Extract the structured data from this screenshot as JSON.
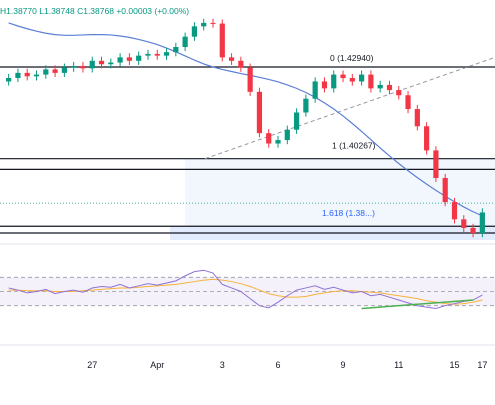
{
  "header": {
    "high": "H1.38770",
    "low": "L1.38748",
    "close": "C1.38768",
    "change": "+0.00003 (+0.00%)"
  },
  "colors": {
    "up": "#089981",
    "down": "#f23645",
    "ma": "#5b7fd6",
    "rsi": "#8e72d6",
    "rsi_ma": "#f7b23b",
    "trend": "#4caf50",
    "fib": "#2962ff",
    "zone": "#dbe7fb"
  },
  "chart_data": [
    {
      "type": "candlestick",
      "title": "",
      "x_tick_labels": [
        "27",
        "Apr",
        "3",
        "6",
        "9",
        "11",
        "15",
        "17"
      ],
      "fib_labels": [
        {
          "ratio": "0",
          "price_text": "(1.42940)"
        },
        {
          "ratio": "1",
          "price_text": "(1.40267)"
        },
        {
          "ratio": "1.618",
          "price_text": "(1.38...)"
        }
      ],
      "horizontal_levels": [
        1.4272,
        1.4006,
        1.3975,
        1.381
      ],
      "ylim": [
        1.377,
        1.442
      ],
      "moving_average": [
        1.44,
        1.4391,
        1.4383,
        1.4376,
        1.437,
        1.4366,
        1.4364,
        1.4364,
        1.4365,
        1.4366,
        1.4366,
        1.4365,
        1.4362,
        1.4358,
        1.4352,
        1.4345,
        1.4337,
        1.4327,
        1.4316,
        1.4304,
        1.4292,
        1.4281,
        1.4272,
        1.4265,
        1.4259,
        1.4253,
        1.4248,
        1.4242,
        1.4236,
        1.4229,
        1.422,
        1.421,
        1.4198,
        1.4184,
        1.4168,
        1.415,
        1.413,
        1.4108,
        1.4085,
        1.4061,
        1.4037,
        1.4014,
        1.3992,
        1.3971,
        1.3951,
        1.3932,
        1.3914,
        1.3897,
        1.3881,
        1.3866,
        1.3852,
        1.384
      ],
      "closes": [
        1.424,
        1.4255,
        1.4245,
        1.425,
        1.4265,
        1.4255,
        1.427,
        1.4275,
        1.4268,
        1.429,
        1.428,
        1.4285,
        1.43,
        1.429,
        1.4305,
        1.431,
        1.4305,
        1.4315,
        1.433,
        1.436,
        1.439,
        1.44,
        1.4398,
        1.43,
        1.429,
        1.427,
        1.42,
        1.408,
        1.405,
        1.406,
        1.409,
        1.414,
        1.418,
        1.423,
        1.421,
        1.425,
        1.424,
        1.423,
        1.425,
        1.421,
        1.422,
        1.4205,
        1.419,
        1.415,
        1.41,
        1.403,
        1.395,
        1.388,
        1.383,
        1.3805,
        1.379,
        1.385
      ],
      "opens": [
        1.423,
        1.424,
        1.4255,
        1.4245,
        1.425,
        1.4265,
        1.4255,
        1.427,
        1.4275,
        1.4268,
        1.429,
        1.428,
        1.4285,
        1.43,
        1.429,
        1.4305,
        1.431,
        1.4305,
        1.4315,
        1.433,
        1.436,
        1.439,
        1.44,
        1.4398,
        1.43,
        1.429,
        1.427,
        1.42,
        1.408,
        1.405,
        1.406,
        1.409,
        1.414,
        1.418,
        1.423,
        1.421,
        1.425,
        1.424,
        1.423,
        1.425,
        1.421,
        1.422,
        1.4205,
        1.419,
        1.415,
        1.41,
        1.403,
        1.395,
        1.388,
        1.383,
        1.3805,
        1.379
      ]
    },
    {
      "type": "line",
      "title": "",
      "ylim": [
        0,
        100
      ],
      "levels": [
        70,
        50,
        30
      ],
      "rsi": [
        55,
        52,
        48,
        50,
        53,
        47,
        50,
        52,
        49,
        55,
        57,
        56,
        60,
        55,
        58,
        61,
        59,
        62,
        65,
        72,
        78,
        80,
        76,
        60,
        55,
        50,
        40,
        30,
        27,
        35,
        44,
        52,
        55,
        58,
        53,
        56,
        52,
        48,
        50,
        44,
        46,
        42,
        38,
        34,
        30,
        28,
        26,
        30,
        33,
        36,
        38,
        45
      ],
      "rsi_ma": [
        52,
        52,
        51,
        51,
        51,
        50,
        50,
        50,
        51,
        52,
        53,
        54,
        55,
        55,
        56,
        57,
        58,
        59,
        60,
        62,
        64,
        66,
        67,
        66,
        64,
        61,
        57,
        52,
        47,
        44,
        42,
        42,
        43,
        46,
        48,
        50,
        51,
        51,
        50,
        49,
        48,
        46,
        44,
        42,
        40,
        37,
        35,
        33,
        32,
        33,
        35,
        38
      ],
      "highlight_value": "50"
    }
  ]
}
